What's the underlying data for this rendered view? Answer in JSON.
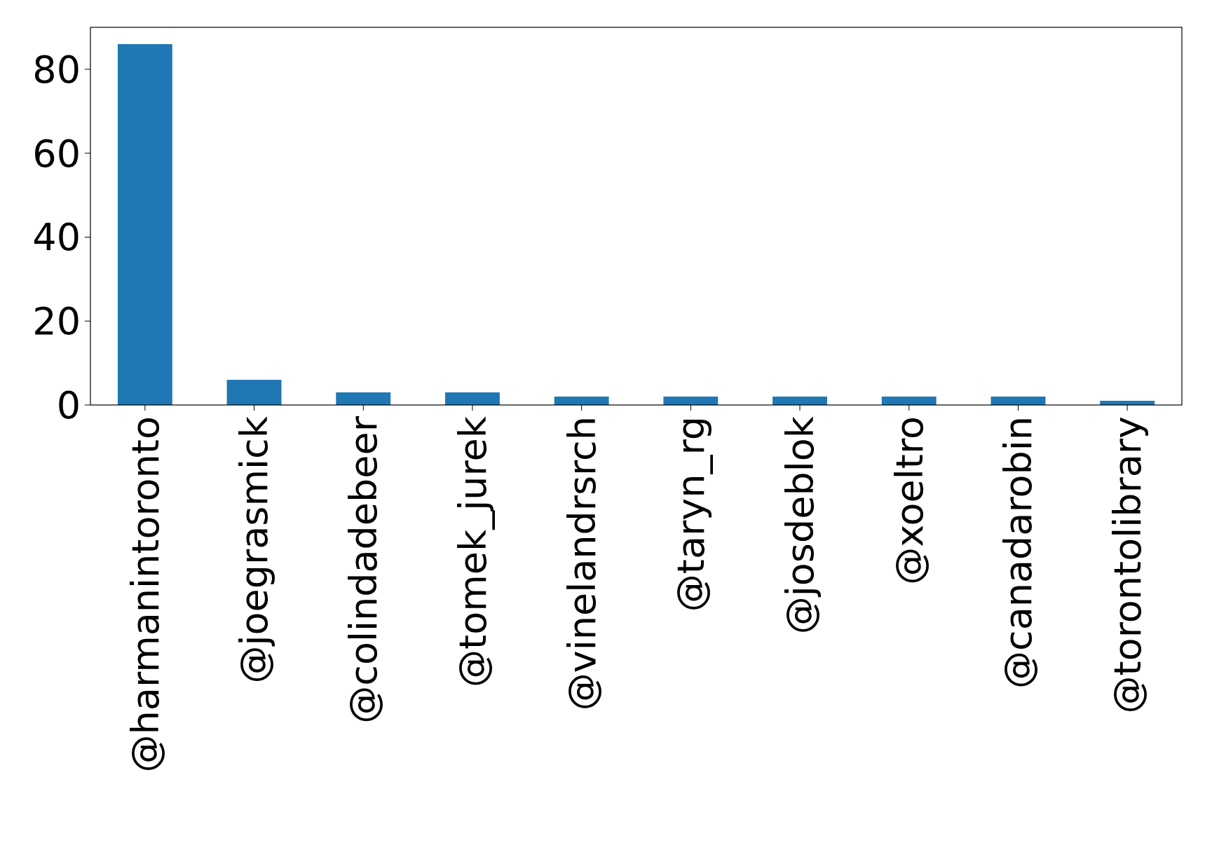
{
  "chart_data": {
    "type": "bar",
    "categories": [
      "@harmanintoronto",
      "@joegrasmick",
      "@colindadebeer",
      "@tomek_jurek",
      "@vinelandrsrch",
      "@taryn_rg",
      "@josdeblok",
      "@xoeltro",
      "@canadarobin",
      "@torontolibrary"
    ],
    "values": [
      86,
      6,
      3,
      3,
      2,
      2,
      2,
      2,
      2,
      1
    ],
    "color": "#1f77b4",
    "ylim": [
      0,
      90
    ],
    "yticks": [
      0,
      20,
      40,
      60,
      80
    ],
    "grid": false
  }
}
